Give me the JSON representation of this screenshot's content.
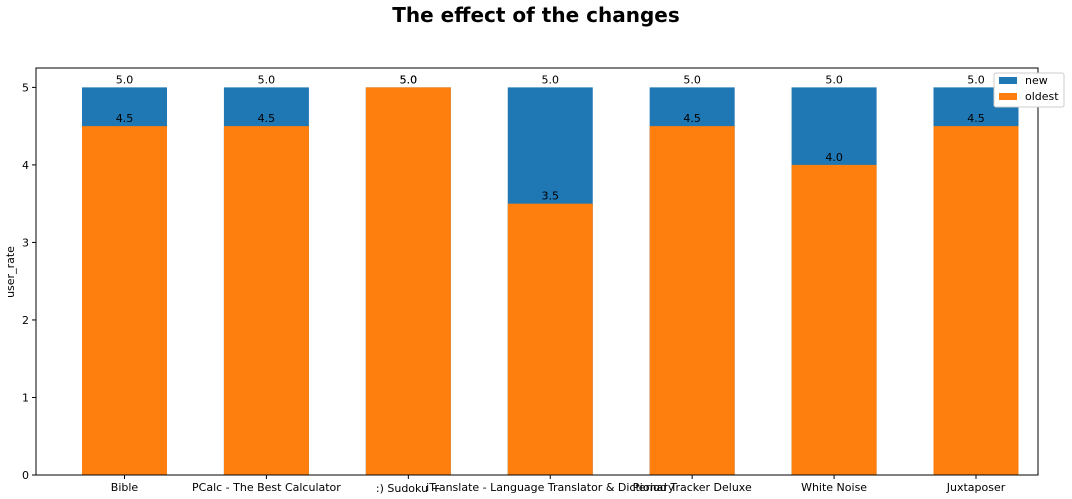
{
  "chart_data": {
    "type": "bar",
    "stacked": "overlay",
    "title": "The effect of the changes",
    "xlabel": "",
    "ylabel": "user_rate",
    "ylim": [
      0,
      5.25
    ],
    "yticks": [
      0,
      1,
      2,
      3,
      4,
      5
    ],
    "ytick_labels": [
      "0",
      "1",
      "2",
      "3",
      "4",
      "5"
    ],
    "grid": false,
    "legend_position": "top-right",
    "categories": [
      "Bible",
      "PCalc - The Best Calculator",
      ":) Sudoku +",
      "iTranslate - Language Translator & Dictionary",
      "Period Tracker Deluxe",
      "White Noise",
      "Juxtaposer"
    ],
    "series": [
      {
        "name": "new",
        "color": "#1f77b4",
        "values": [
          5.0,
          5.0,
          5.0,
          5.0,
          5.0,
          5.0,
          5.0
        ],
        "labels": [
          "5.0",
          "5.0",
          "5.0",
          "5.0",
          "5.0",
          "5.0",
          "5.0"
        ]
      },
      {
        "name": "oldest",
        "color": "#ff7f0e",
        "values": [
          4.5,
          4.5,
          5.0,
          3.5,
          4.5,
          4.0,
          4.5
        ],
        "labels": [
          "4.5",
          "4.5",
          "5.0",
          "3.5",
          "4.5",
          "4.0",
          "4.5"
        ]
      }
    ]
  }
}
